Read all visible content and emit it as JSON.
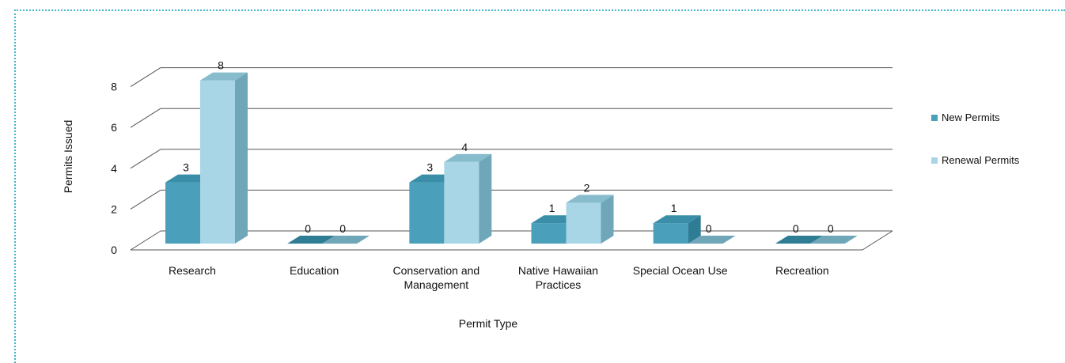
{
  "colors": {
    "frame": "#3fb6c9",
    "new_front": "#4aa0ba",
    "new_side": "#2f7d95",
    "new_top": "#3a8ea8",
    "renewal_front": "#a8d6e6",
    "renewal_side": "#6fa6b8",
    "renewal_top": "#86bccc",
    "gridline": "#555555"
  },
  "chart_data": {
    "type": "bar",
    "style": "3d-clustered-column",
    "categories": [
      "Research",
      "Education",
      "Conservation and Management",
      "Native Hawaiian Practices",
      "Special Ocean Use",
      "Recreation"
    ],
    "series": [
      {
        "name": "New Permits",
        "values": [
          3,
          0,
          3,
          1,
          1,
          0
        ]
      },
      {
        "name": "Renewal Permits",
        "values": [
          8,
          0,
          4,
          2,
          0,
          0
        ]
      }
    ],
    "xlabel": "Permit  Type",
    "ylabel": "Permits Issued",
    "ylim": [
      0,
      8
    ],
    "yticks": [
      0,
      2,
      4,
      6,
      8
    ],
    "grid": true,
    "legend_position": "right",
    "data_labels": true
  }
}
